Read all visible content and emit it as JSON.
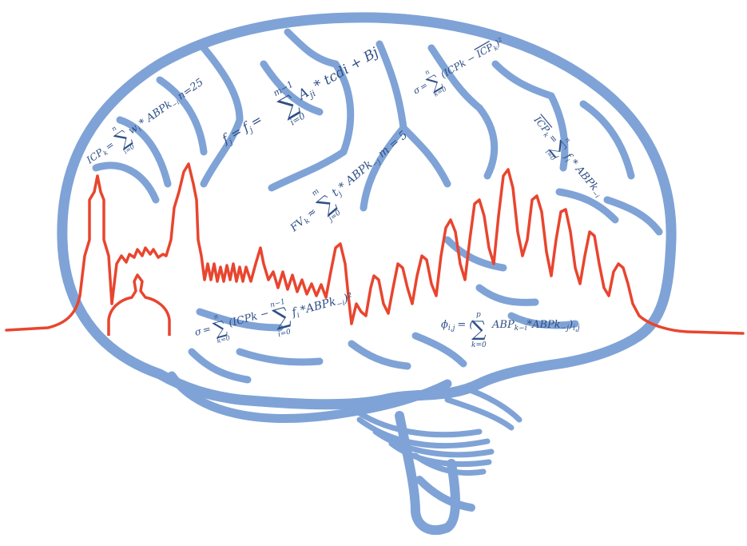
{
  "colors": {
    "brain": "#7fa3d6",
    "signal": "#e8452f",
    "text": "#2f4f86",
    "background": "#ffffff"
  },
  "equations": {
    "eq1": {
      "lhs": "ICP",
      "sub": "k",
      "eq": "=",
      "sum_top": "n",
      "sum_bottom": "i=0",
      "term": "w",
      "term_sub": "i",
      "rest": "* ABPk",
      "rest_sub": "−i",
      "tail": "n=25"
    },
    "eq2": {
      "lhs": "f",
      "lhs_sub": "j",
      "eq": "=",
      "mid": "f",
      "mid_sub": "j",
      "eq2": "=",
      "sum_top": "m−1",
      "sum_bottom": "i=0",
      "term": "A",
      "term_sub": "ji",
      "rest": "* tcdi + Bj"
    },
    "eq3": {
      "lhs": "σ",
      "eq": "=",
      "sum_top": "n",
      "sum_bottom": "k=0",
      "body": "(ICPk − ",
      "bar": "ICP",
      "bar_sub": "k",
      "close": ")²"
    },
    "eq4": {
      "lhs": "ICP",
      "lhs_sub": "k",
      "eq": "=",
      "sum_top": "n",
      "sum_bottom": "i=0",
      "term": "f",
      "term_sub": "i",
      "rest": "* ABPk",
      "rest_sub": "−i"
    },
    "eq5": {
      "lhs": "FV",
      "lhs_sub": "k",
      "eq": "≈",
      "sum_top": "m",
      "sum_bottom": "j=0",
      "term": "t",
      "term_sub": "j",
      "rest": "* ABPk",
      "rest_sub": "−j",
      "tail": "m = 5"
    },
    "eq6": {
      "lhs": "σ",
      "eq": "=",
      "sum_top": "n",
      "sum_bottom": "k=0",
      "body": "(ICPk −",
      "sum2_top": "n−1",
      "sum2_bottom": "i=0",
      "term": "f",
      "term_sub": "i",
      "rest": "*ABPk",
      "rest_sub": "−i",
      "close": ")²"
    },
    "eq7": {
      "lhs": "ϕ",
      "lhs_sub": "i,j",
      "eq": "= (",
      "sum_top": "p",
      "sum_bottom": "k=0",
      "term": "ABP",
      "term_sub": "k−i",
      "rest": "*ABPk",
      "rest_sub": "−j",
      "close": ")",
      "close_sub": "i,j"
    }
  }
}
